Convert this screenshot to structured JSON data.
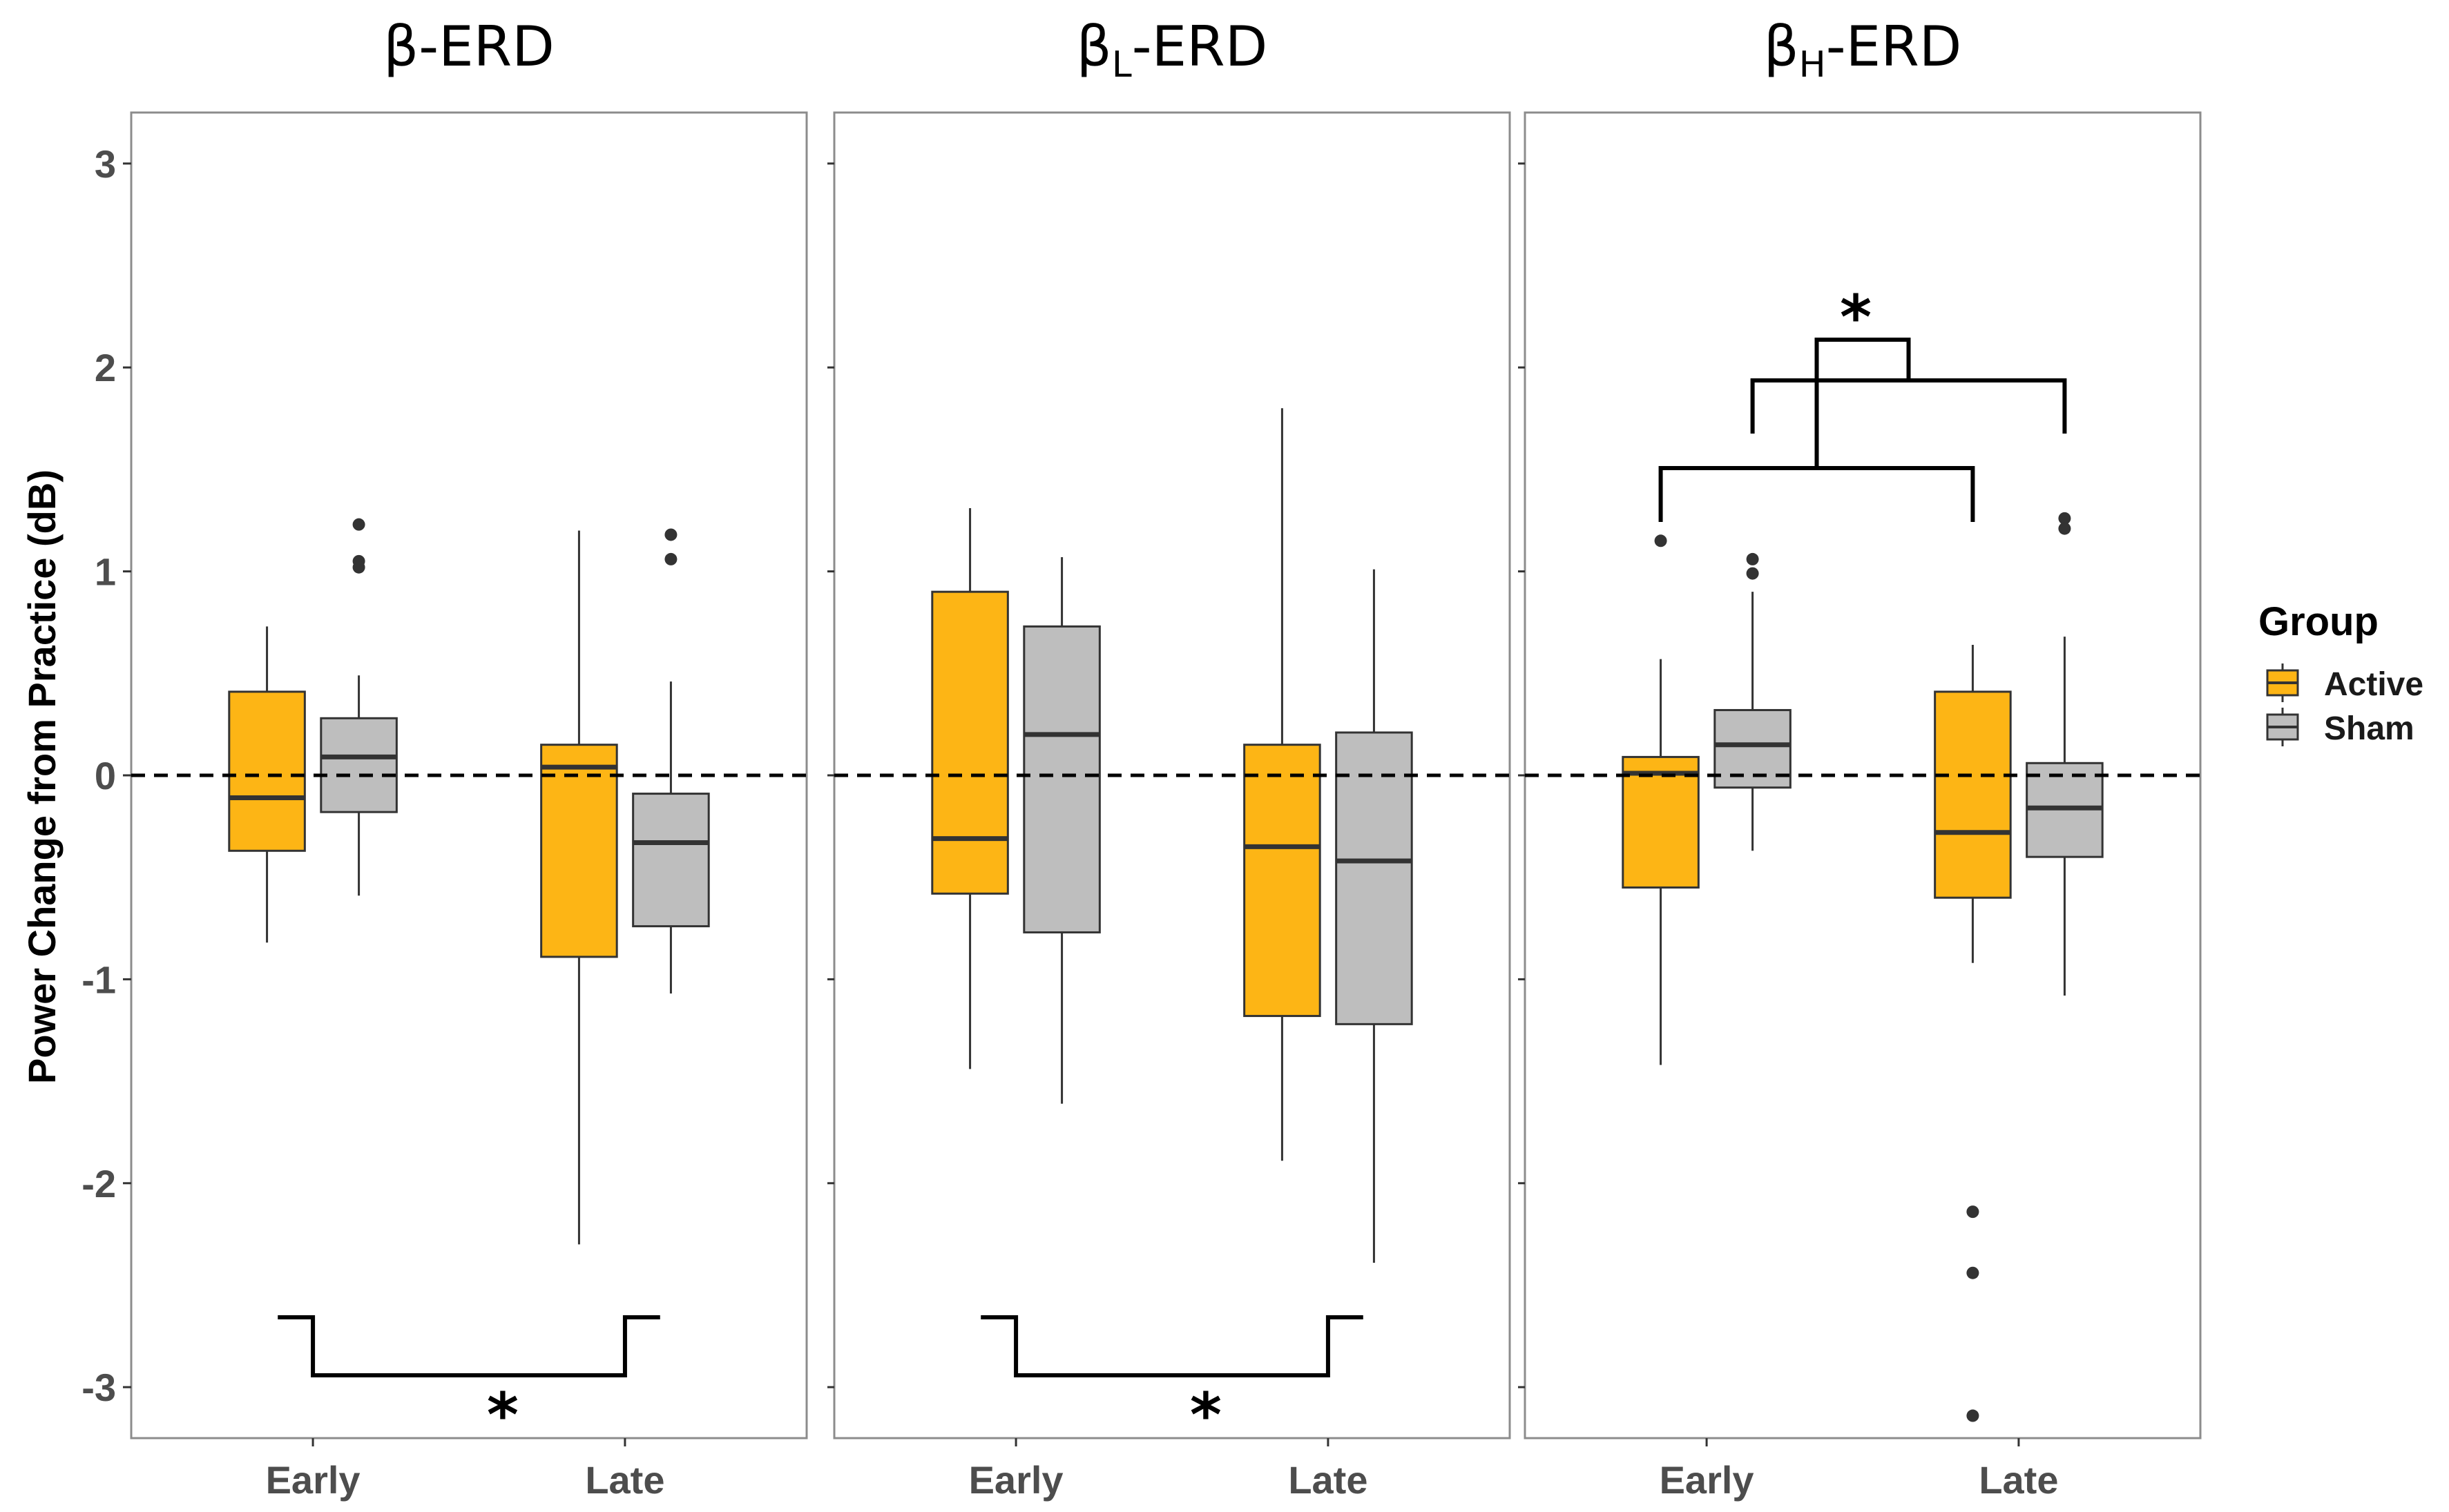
{
  "chart_data": {
    "type": "box",
    "ylabel": "Power Change from Practice (dB)",
    "xlabel": "",
    "ylim": [
      -3.25,
      3.25
    ],
    "yticks": [
      3,
      2,
      1,
      0,
      -1,
      -2,
      -3
    ],
    "categories": [
      "Early",
      "Late"
    ],
    "reference_line": {
      "y": 0,
      "style": "dashed"
    },
    "legend": {
      "title": "Group",
      "position": "right",
      "entries": [
        {
          "label": "Active",
          "color": "#FDB515"
        },
        {
          "label": "Sham",
          "color": "#BEBEBE"
        }
      ]
    },
    "panels": [
      {
        "title_main": "β",
        "title_sub": "",
        "title_suffix": "-ERD",
        "boxes": [
          {
            "category": "Early",
            "group": "Active",
            "whisker_low": -0.82,
            "q1": -0.37,
            "median": -0.11,
            "q3": 0.41,
            "whisker_high": 0.73,
            "outliers": []
          },
          {
            "category": "Early",
            "group": "Sham",
            "whisker_low": -0.59,
            "q1": -0.18,
            "median": 0.09,
            "q3": 0.28,
            "whisker_high": 0.49,
            "outliers": [
              1.23,
              1.05,
              1.02
            ]
          },
          {
            "category": "Late",
            "group": "Active",
            "whisker_low": -2.3,
            "q1": -0.89,
            "median": 0.04,
            "q3": 0.15,
            "whisker_high": 1.2,
            "outliers": []
          },
          {
            "category": "Late",
            "group": "Sham",
            "whisker_low": -1.07,
            "q1": -0.74,
            "median": -0.33,
            "q3": -0.09,
            "whisker_high": 0.46,
            "outliers": [
              1.18,
              1.06
            ]
          }
        ],
        "significance": [
          {
            "label": "*",
            "comparison": "Early vs Late"
          }
        ]
      },
      {
        "title_main": "β",
        "title_sub": "L",
        "title_suffix": "-ERD",
        "boxes": [
          {
            "category": "Early",
            "group": "Active",
            "whisker_low": -1.44,
            "q1": -0.58,
            "median": -0.31,
            "q3": 0.9,
            "whisker_high": 1.31,
            "outliers": []
          },
          {
            "category": "Early",
            "group": "Sham",
            "whisker_low": -1.61,
            "q1": -0.77,
            "median": 0.2,
            "q3": 0.73,
            "whisker_high": 1.07,
            "outliers": []
          },
          {
            "category": "Late",
            "group": "Active",
            "whisker_low": -1.89,
            "q1": -1.18,
            "median": -0.35,
            "q3": 0.15,
            "whisker_high": 1.8,
            "outliers": []
          },
          {
            "category": "Late",
            "group": "Sham",
            "whisker_low": -2.39,
            "q1": -1.22,
            "median": -0.42,
            "q3": 0.21,
            "whisker_high": 1.01,
            "outliers": []
          }
        ],
        "significance": [
          {
            "label": "*",
            "comparison": "Early vs Late"
          }
        ]
      },
      {
        "title_main": "β",
        "title_sub": "H",
        "title_suffix": "-ERD",
        "boxes": [
          {
            "category": "Early",
            "group": "Active",
            "whisker_low": -1.42,
            "q1": -0.55,
            "median": 0.01,
            "q3": 0.09,
            "whisker_high": 0.57,
            "outliers": [
              1.15
            ]
          },
          {
            "category": "Early",
            "group": "Sham",
            "whisker_low": -0.37,
            "q1": -0.06,
            "median": 0.15,
            "q3": 0.32,
            "whisker_high": 0.9,
            "outliers": [
              1.06,
              0.99
            ]
          },
          {
            "category": "Late",
            "group": "Active",
            "whisker_low": -0.92,
            "q1": -0.6,
            "median": -0.28,
            "q3": 0.41,
            "whisker_high": 0.64,
            "outliers": [
              -2.14,
              -2.44,
              -3.14
            ]
          },
          {
            "category": "Late",
            "group": "Sham",
            "whisker_low": -1.08,
            "q1": -0.4,
            "median": -0.16,
            "q3": 0.06,
            "whisker_high": 0.68,
            "outliers": [
              1.26,
              1.21
            ]
          }
        ],
        "significance": [
          {
            "label": "*",
            "comparison": "Early vs Late by Group"
          }
        ]
      }
    ]
  }
}
